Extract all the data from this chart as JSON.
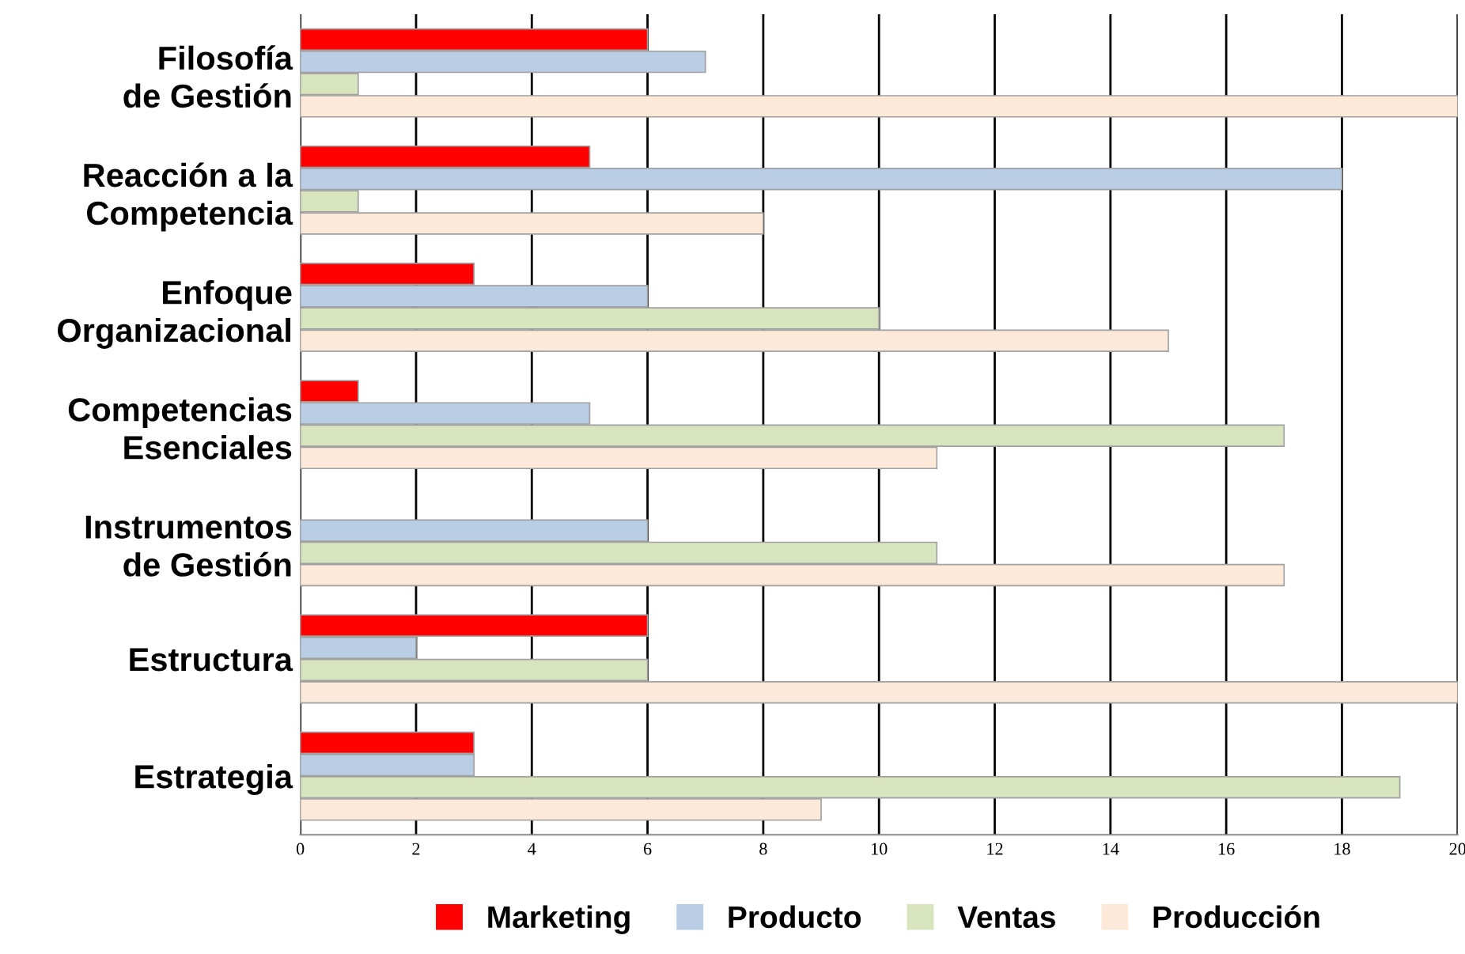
{
  "chart_data": {
    "type": "bar",
    "orientation": "horizontal",
    "categories": [
      "Filosofía\nde Gestión",
      "Reacción a la\nCompetencia",
      "Enfoque\nOrganizacional",
      "Competencias\nEsenciales",
      "Instrumentos\nde Gestión",
      "Estructura",
      "Estrategia"
    ],
    "series": [
      {
        "name": "Marketing",
        "color": "#ff0000",
        "values": [
          6,
          5,
          3,
          1,
          null,
          6,
          3
        ]
      },
      {
        "name": "Producto",
        "color": "#b9cde5",
        "values": [
          7,
          18,
          6,
          5,
          6,
          2,
          3
        ]
      },
      {
        "name": "Ventas",
        "color": "#d7e4bd",
        "values": [
          1,
          1,
          10,
          17,
          11,
          6,
          19
        ]
      },
      {
        "name": "Producción",
        "color": "#fde9d9",
        "values": [
          20,
          8,
          15,
          11,
          17,
          20,
          9
        ]
      }
    ],
    "xlim": [
      0,
      20
    ],
    "xticks": [
      0,
      2,
      4,
      6,
      8,
      10,
      12,
      14,
      16,
      18,
      20
    ],
    "grid": "x",
    "legend": "bottom"
  }
}
